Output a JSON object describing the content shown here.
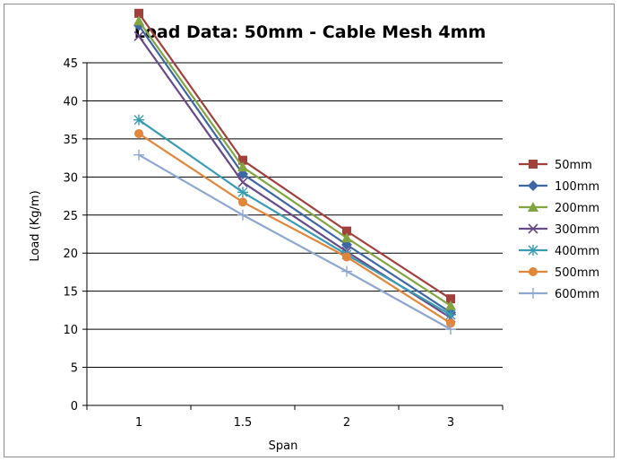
{
  "chart_data": {
    "type": "line",
    "title": "Load Data: 50mm - Cable Mesh 4mm",
    "xlabel": "Span",
    "ylabel": "Load (Kg/m)",
    "categories": [
      "1",
      "1.5",
      "2",
      "3"
    ],
    "ylim": [
      0,
      45
    ],
    "yticks": [
      0,
      5,
      10,
      15,
      20,
      25,
      30,
      35,
      40,
      45
    ],
    "grid": "horizontal major gridlines",
    "legend_position": "right",
    "series": [
      {
        "name": "50mm",
        "color": "#a0413e",
        "marker": "square",
        "values": [
          51.5,
          32.2,
          22.9,
          14.0
        ]
      },
      {
        "name": "100mm",
        "color": "#3e68a3",
        "marker": "diamond",
        "values": [
          49.9,
          30.4,
          21.1,
          12.2
        ]
      },
      {
        "name": "200mm",
        "color": "#83a443",
        "marker": "triangle",
        "values": [
          50.5,
          31.3,
          22.0,
          13.1
        ]
      },
      {
        "name": "300mm",
        "color": "#674a87",
        "marker": "x",
        "values": [
          48.5,
          29.3,
          20.2,
          11.5
        ]
      },
      {
        "name": "400mm",
        "color": "#3a9cb3",
        "marker": "star",
        "values": [
          37.5,
          28.0,
          19.8,
          11.9
        ]
      },
      {
        "name": "500mm",
        "color": "#e1863b",
        "marker": "circle",
        "values": [
          35.7,
          26.7,
          19.5,
          10.8
        ]
      },
      {
        "name": "600mm",
        "color": "#8ea7d0",
        "marker": "plus",
        "values": [
          32.9,
          25.0,
          17.6,
          10.0
        ]
      }
    ]
  }
}
